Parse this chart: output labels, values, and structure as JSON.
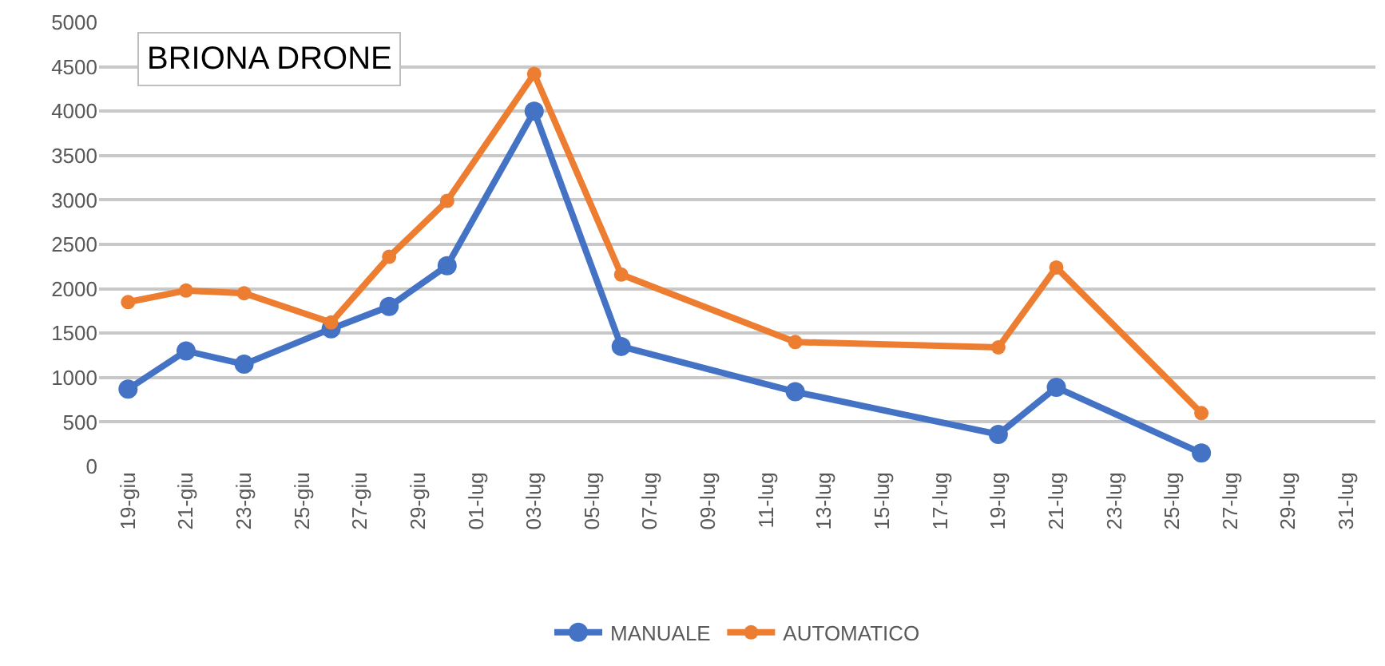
{
  "chart_data": {
    "type": "line",
    "title": "BRIONA DRONE",
    "x": [
      "--06-19",
      "--06-21",
      "--06-23",
      "--06-26",
      "--06-28",
      "--06-30",
      "--07-03",
      "--07-06",
      "--07-12",
      "--07-19",
      "--07-21",
      "--07-26"
    ],
    "series": [
      {
        "name": "MANUALE",
        "color": "#4472c4",
        "values": [
          870,
          1300,
          1150,
          1550,
          1800,
          2260,
          4000,
          1350,
          840,
          360,
          890,
          150
        ]
      },
      {
        "name": "AUTOMATICO",
        "color": "#ed7d31",
        "values": [
          1850,
          1980,
          1950,
          1620,
          2360,
          2990,
          4420,
          2160,
          1400,
          1340,
          2240,
          600
        ]
      }
    ],
    "xlim": [
      "--06-18",
      "--08-01"
    ],
    "xticks": [
      {
        "value": "--06-19",
        "label": "19-giu"
      },
      {
        "value": "--06-21",
        "label": "21-giu"
      },
      {
        "value": "--06-23",
        "label": "23-giu"
      },
      {
        "value": "--06-25",
        "label": "25-giu"
      },
      {
        "value": "--06-27",
        "label": "27-giu"
      },
      {
        "value": "--06-29",
        "label": "29-giu"
      },
      {
        "value": "--07-01",
        "label": "01-lug"
      },
      {
        "value": "--07-03",
        "label": "03-lug"
      },
      {
        "value": "--07-05",
        "label": "05-lug"
      },
      {
        "value": "--07-07",
        "label": "07-lug"
      },
      {
        "value": "--07-09",
        "label": "09-lug"
      },
      {
        "value": "--07-11",
        "label": "11-lug"
      },
      {
        "value": "--07-13",
        "label": "13-lug"
      },
      {
        "value": "--07-15",
        "label": "15-lug"
      },
      {
        "value": "--07-17",
        "label": "17-lug"
      },
      {
        "value": "--07-19",
        "label": "19-lug"
      },
      {
        "value": "--07-21",
        "label": "21-lug"
      },
      {
        "value": "--07-23",
        "label": "23-lug"
      },
      {
        "value": "--07-25",
        "label": "25-lug"
      },
      {
        "value": "--07-27",
        "label": "27-lug"
      },
      {
        "value": "--07-29",
        "label": "29-lug"
      },
      {
        "value": "--07-31",
        "label": "31-lug"
      }
    ],
    "ylim": [
      0,
      5000
    ],
    "yticks": [
      0,
      500,
      1000,
      1500,
      2000,
      2500,
      3000,
      3500,
      4000,
      4500,
      5000
    ],
    "grid": "y",
    "legend": "bottom",
    "marker": "circle",
    "line_style": "solid"
  }
}
